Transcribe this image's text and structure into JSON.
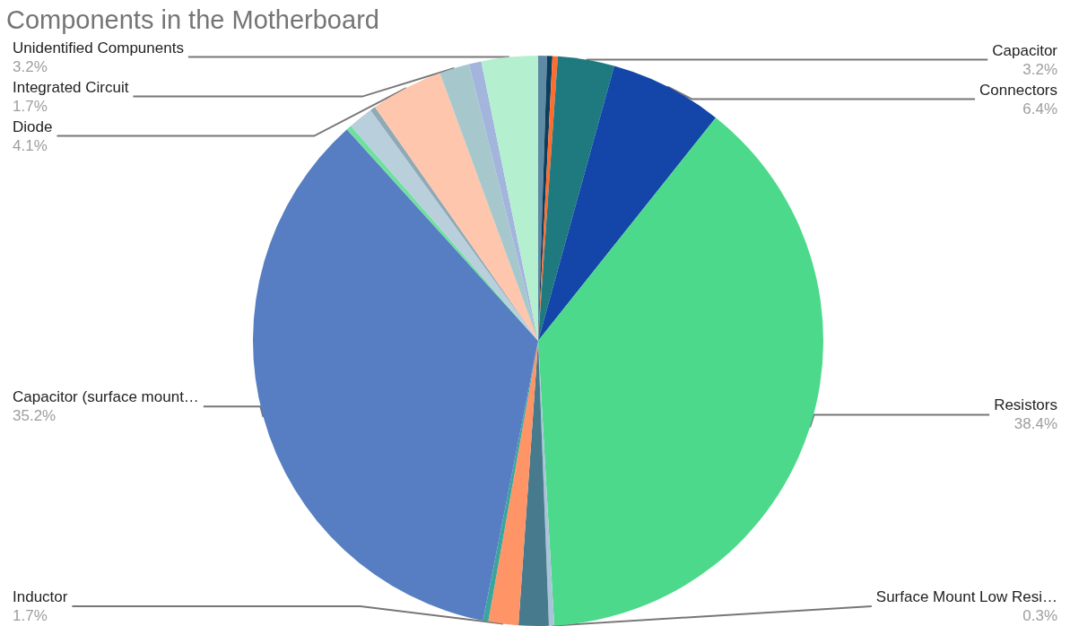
{
  "chart_data": {
    "type": "pie",
    "title": "Components in the Motherboard",
    "categories": [
      null,
      null,
      null,
      "Capacitor",
      "Connectors",
      "Resistors",
      "Surface Mount Low Resi…",
      null,
      "Inductor",
      null,
      "Capacitor (surface mount…",
      null,
      null,
      null,
      "Diode",
      "Integrated Circuit",
      null,
      "Unidentified Compunents"
    ],
    "values": [
      0.5,
      0.3,
      0.3,
      3.2,
      6.4,
      38.4,
      0.3,
      1.7,
      1.7,
      0.3,
      35.2,
      0.3,
      1.4,
      0.3,
      4.1,
      1.7,
      0.7,
      3.2
    ],
    "value_labels": [
      null,
      null,
      null,
      "3.2%",
      "6.4%",
      "38.4%",
      "0.3%",
      null,
      "1.7%",
      null,
      "35.2%",
      null,
      null,
      null,
      "4.1%",
      "1.7%",
      null,
      "3.2%"
    ],
    "colors": [
      "#5e8aa6",
      "#0b3d5c",
      "#ff6d2e",
      "#1f7a80",
      "#1346a8",
      "#4cd98b",
      "#a9c4d9",
      "#477a8c",
      "#ff9466",
      "#3aa59c",
      "#577ec2",
      "#6fe0a0",
      "#b9cfdc",
      "#8fa9b5",
      "#fdc6ad",
      "#a6c8cc",
      "#a3b4dd",
      "#b4efd0"
    ],
    "legend": false
  }
}
